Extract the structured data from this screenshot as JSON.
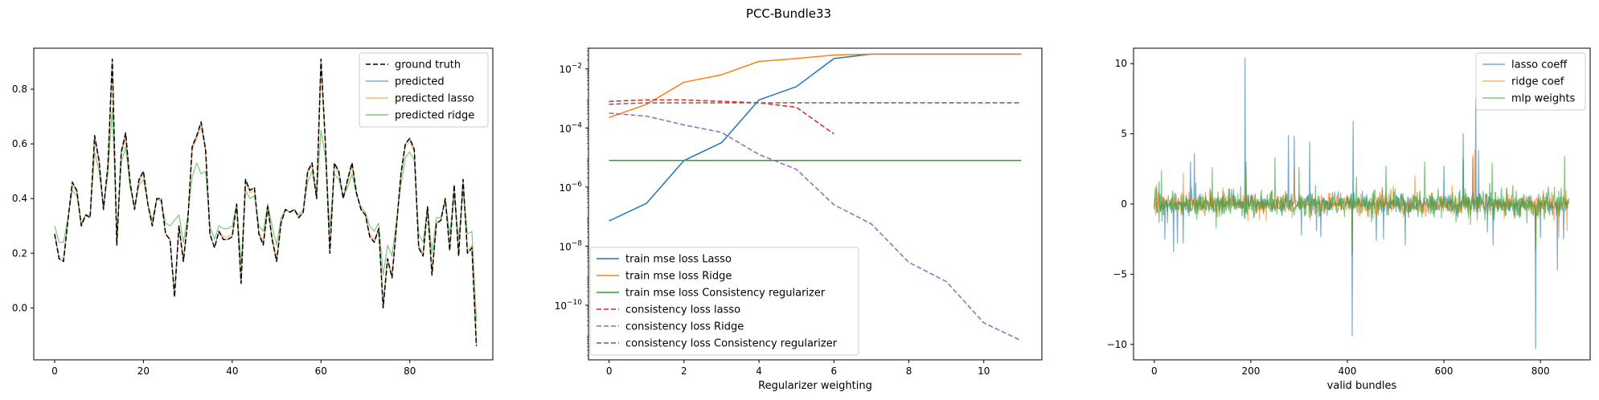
{
  "figure": {
    "suptitle": "PCC-Bundle33"
  },
  "chart_data": [
    {
      "type": "line",
      "title": "",
      "xlabel": "",
      "ylabel": "",
      "xlim": [
        -4.7,
        98.7
      ],
      "ylim": [
        -0.19,
        0.95
      ],
      "xticks": [
        0,
        20,
        40,
        60,
        80
      ],
      "yticks": [
        0.0,
        0.2,
        0.4,
        0.6,
        0.8
      ],
      "ytick_labels": [
        "0.0",
        "0.2",
        "0.4",
        "0.6",
        "0.8"
      ],
      "legend_position": "top-right",
      "series": [
        {
          "name": "ground truth",
          "color": "#000000",
          "dash": "6,3",
          "width": 1.5,
          "opacity": 1.0,
          "values": [
            0.27,
            0.18,
            0.17,
            0.32,
            0.46,
            0.43,
            0.3,
            0.34,
            0.33,
            0.63,
            0.54,
            0.36,
            0.52,
            0.91,
            0.23,
            0.57,
            0.64,
            0.46,
            0.36,
            0.47,
            0.5,
            0.38,
            0.3,
            0.4,
            0.4,
            0.27,
            0.25,
            0.04,
            0.3,
            0.17,
            0.32,
            0.59,
            0.63,
            0.68,
            0.58,
            0.27,
            0.22,
            0.28,
            0.25,
            0.25,
            0.26,
            0.38,
            0.09,
            0.47,
            0.43,
            0.44,
            0.27,
            0.23,
            0.37,
            0.25,
            0.17,
            0.31,
            0.36,
            0.35,
            0.36,
            0.33,
            0.35,
            0.5,
            0.53,
            0.4,
            0.91,
            0.6,
            0.2,
            0.53,
            0.5,
            0.4,
            0.47,
            0.53,
            0.42,
            0.36,
            0.34,
            0.26,
            0.24,
            0.29,
            0.0,
            0.18,
            0.11,
            0.3,
            0.49,
            0.6,
            0.62,
            0.58,
            0.22,
            0.19,
            0.37,
            0.12,
            0.31,
            0.32,
            0.4,
            0.21,
            0.45,
            0.19,
            0.47,
            0.2,
            0.22,
            -0.14
          ]
        },
        {
          "name": "predicted",
          "color": "#1f77b4",
          "dash": "",
          "width": 1.2,
          "opacity": 0.6,
          "values": [
            0.27,
            0.18,
            0.17,
            0.32,
            0.46,
            0.43,
            0.3,
            0.34,
            0.33,
            0.63,
            0.54,
            0.36,
            0.52,
            0.91,
            0.23,
            0.57,
            0.64,
            0.46,
            0.36,
            0.47,
            0.5,
            0.38,
            0.3,
            0.4,
            0.4,
            0.27,
            0.25,
            0.04,
            0.3,
            0.17,
            0.32,
            0.59,
            0.63,
            0.68,
            0.58,
            0.27,
            0.22,
            0.28,
            0.25,
            0.25,
            0.26,
            0.38,
            0.09,
            0.47,
            0.43,
            0.44,
            0.27,
            0.23,
            0.37,
            0.25,
            0.17,
            0.31,
            0.36,
            0.35,
            0.36,
            0.33,
            0.35,
            0.5,
            0.53,
            0.4,
            0.91,
            0.6,
            0.2,
            0.53,
            0.5,
            0.4,
            0.47,
            0.53,
            0.42,
            0.36,
            0.34,
            0.26,
            0.24,
            0.29,
            0.0,
            0.18,
            0.11,
            0.3,
            0.49,
            0.6,
            0.62,
            0.58,
            0.22,
            0.19,
            0.37,
            0.12,
            0.31,
            0.32,
            0.4,
            0.21,
            0.45,
            0.19,
            0.47,
            0.2,
            0.22,
            -0.14
          ]
        },
        {
          "name": "predicted lasso",
          "color": "#ff7f0e",
          "dash": "",
          "width": 1.2,
          "opacity": 0.6,
          "values": [
            0.27,
            0.19,
            0.18,
            0.32,
            0.45,
            0.42,
            0.3,
            0.34,
            0.33,
            0.61,
            0.53,
            0.36,
            0.51,
            0.88,
            0.24,
            0.56,
            0.62,
            0.45,
            0.36,
            0.46,
            0.49,
            0.38,
            0.3,
            0.4,
            0.39,
            0.27,
            0.25,
            0.06,
            0.3,
            0.18,
            0.32,
            0.58,
            0.62,
            0.66,
            0.57,
            0.27,
            0.22,
            0.28,
            0.26,
            0.26,
            0.27,
            0.38,
            0.1,
            0.46,
            0.42,
            0.43,
            0.28,
            0.24,
            0.38,
            0.26,
            0.18,
            0.31,
            0.36,
            0.35,
            0.36,
            0.33,
            0.35,
            0.49,
            0.52,
            0.4,
            0.88,
            0.59,
            0.21,
            0.52,
            0.49,
            0.4,
            0.46,
            0.52,
            0.42,
            0.36,
            0.34,
            0.27,
            0.25,
            0.29,
            0.02,
            0.18,
            0.12,
            0.3,
            0.48,
            0.59,
            0.61,
            0.57,
            0.23,
            0.2,
            0.37,
            0.13,
            0.31,
            0.32,
            0.4,
            0.22,
            0.44,
            0.2,
            0.46,
            0.21,
            0.23,
            -0.12
          ]
        },
        {
          "name": "predicted ridge",
          "color": "#2ca02c",
          "dash": "",
          "width": 1.2,
          "opacity": 0.6,
          "values": [
            0.3,
            0.24,
            0.24,
            0.33,
            0.43,
            0.41,
            0.31,
            0.34,
            0.34,
            0.57,
            0.5,
            0.37,
            0.49,
            0.73,
            0.27,
            0.53,
            0.59,
            0.44,
            0.37,
            0.45,
            0.47,
            0.38,
            0.32,
            0.4,
            0.39,
            0.31,
            0.3,
            0.32,
            0.34,
            0.24,
            0.34,
            0.48,
            0.53,
            0.49,
            0.5,
            0.3,
            0.25,
            0.3,
            0.29,
            0.29,
            0.3,
            0.38,
            0.16,
            0.43,
            0.4,
            0.41,
            0.3,
            0.28,
            0.38,
            0.3,
            0.23,
            0.33,
            0.36,
            0.35,
            0.36,
            0.34,
            0.36,
            0.46,
            0.5,
            0.41,
            0.65,
            0.55,
            0.29,
            0.49,
            0.47,
            0.41,
            0.44,
            0.49,
            0.41,
            0.37,
            0.35,
            0.3,
            0.28,
            0.31,
            0.12,
            0.23,
            0.19,
            0.32,
            0.45,
            0.55,
            0.57,
            0.54,
            0.27,
            0.24,
            0.37,
            0.2,
            0.33,
            0.33,
            0.39,
            0.27,
            0.41,
            0.25,
            0.43,
            0.27,
            0.28,
            -0.05
          ]
        }
      ]
    },
    {
      "type": "line",
      "title": "",
      "xlabel": "Regularizer weighting",
      "ylabel": "",
      "yscale": "log",
      "xlim": [
        -0.55,
        11.55
      ],
      "ylim_log10": [
        -11.85,
        -1.3
      ],
      "xticks": [
        0,
        2,
        4,
        6,
        8,
        10
      ],
      "yticks_log10": [
        -10,
        -8,
        -6,
        -4,
        -2
      ],
      "ytick_labels": [
        "10",
        "10",
        "10",
        "10",
        "10"
      ],
      "ytick_exponents": [
        "−10",
        "−8",
        "−6",
        "−4",
        "−2"
      ],
      "legend_position": "bottom-left",
      "series": [
        {
          "name": "train mse loss Lasso",
          "color": "#1f77b4",
          "dash": "",
          "width": 1.5,
          "x": [
            0,
            1,
            2,
            3,
            4,
            5,
            6,
            7,
            8,
            9,
            10,
            11
          ],
          "log10_values": [
            -7.15,
            -6.55,
            -5.1,
            -4.5,
            -3.05,
            -2.6,
            -1.65,
            -1.5,
            -1.5,
            -1.5,
            -1.5,
            -1.5
          ]
        },
        {
          "name": "train mse loss Ridge",
          "color": "#ff7f0e",
          "dash": "",
          "width": 1.5,
          "x": [
            0,
            1,
            2,
            3,
            4,
            5,
            6,
            7,
            8,
            9,
            10,
            11
          ],
          "log10_values": [
            -3.65,
            -3.2,
            -2.45,
            -2.2,
            -1.75,
            -1.65,
            -1.53,
            -1.5,
            -1.5,
            -1.5,
            -1.5,
            -1.5
          ]
        },
        {
          "name": "train mse loss Consistency regularizer",
          "color": "#2ca02c",
          "dash": "",
          "width": 1.5,
          "x": [
            0,
            11
          ],
          "log10_values": [
            -5.1,
            -5.1
          ]
        },
        {
          "name": "consistency loss lasso",
          "color": "#d62728",
          "dash": "6,3",
          "width": 1.5,
          "x": [
            0,
            1,
            2,
            3,
            4,
            5,
            6
          ],
          "log10_values": [
            -3.1,
            -3.05,
            -3.05,
            -3.1,
            -3.15,
            -3.3,
            -4.2
          ]
        },
        {
          "name": "consistency loss Ridge",
          "color": "#9467bd",
          "dash": "6,3",
          "width": 1.5,
          "x": [
            0,
            1,
            2,
            3,
            4,
            5,
            6,
            7,
            8,
            9,
            10,
            11
          ],
          "log10_values": [
            -3.5,
            -3.6,
            -3.9,
            -4.15,
            -4.9,
            -5.4,
            -6.6,
            -7.25,
            -8.55,
            -9.2,
            -10.6,
            -11.2
          ]
        },
        {
          "name": "consistency loss Consistency regularizer",
          "color": "#8c564b",
          "dash": "6,3",
          "width": 1.5,
          "x": [
            0,
            1,
            2,
            3,
            4,
            5,
            6,
            7,
            8,
            9,
            10,
            11
          ],
          "log10_values": [
            -3.2,
            -3.15,
            -3.15,
            -3.15,
            -3.15,
            -3.15,
            -3.15,
            -3.15,
            -3.15,
            -3.15,
            -3.15,
            -3.15
          ]
        }
      ]
    },
    {
      "type": "line",
      "title": "",
      "xlabel": "valid bundles",
      "ylabel": "",
      "xlim": [
        -43,
        903
      ],
      "ylim": [
        -11.1,
        11.1
      ],
      "xticks": [
        0,
        200,
        400,
        600,
        800
      ],
      "yticks": [
        -10,
        -5,
        0,
        5,
        10
      ],
      "ytick_labels": [
        "−10",
        "−5",
        "0",
        "5",
        "10"
      ],
      "legend_position": "top-right",
      "n_points": 860,
      "series": [
        {
          "name": "lasso coeff",
          "color": "#1f77b4",
          "width": 1.2,
          "opacity": 0.6,
          "base_amplitude": 0.9,
          "spikes": [
            [
              10,
              1.6
            ],
            [
              22,
              -2.5
            ],
            [
              40,
              -3.4
            ],
            [
              48,
              -2.8
            ],
            [
              60,
              -2.8
            ],
            [
              75,
              3.0
            ],
            [
              83,
              3.6
            ],
            [
              188,
              10.4
            ],
            [
              278,
              4.9
            ],
            [
              290,
              4.8
            ],
            [
              305,
              -2.2
            ],
            [
              322,
              4.4
            ],
            [
              336,
              -1.9
            ],
            [
              345,
              -2.3
            ],
            [
              410,
              -9.4
            ],
            [
              412,
              5.9
            ],
            [
              460,
              -2.6
            ],
            [
              475,
              -2.5
            ],
            [
              520,
              -2.9
            ],
            [
              600,
              2.7
            ],
            [
              640,
              5.0
            ],
            [
              660,
              3.3
            ],
            [
              666,
              7.5
            ],
            [
              672,
              3.8
            ],
            [
              690,
              -2.0
            ],
            [
              702,
              -2.9
            ],
            [
              790,
              -10.3
            ],
            [
              800,
              -2.4
            ],
            [
              835,
              -4.7
            ],
            [
              848,
              -2.5
            ]
          ]
        },
        {
          "name": "ridge coef",
          "color": "#ff7f0e",
          "width": 1.2,
          "opacity": 0.6,
          "base_amplitude": 1.1,
          "spikes": [
            [
              5,
              1.4
            ],
            [
              60,
              2.2
            ],
            [
              190,
              2.5
            ],
            [
              290,
              2.4
            ],
            [
              410,
              -2.8
            ],
            [
              540,
              2.0
            ],
            [
              660,
              3.5
            ],
            [
              664,
              3.8
            ],
            [
              790,
              -2.9
            ],
            [
              838,
              -2.4
            ],
            [
              855,
              -1.9
            ]
          ]
        },
        {
          "name": "mlp weights",
          "color": "#2ca02c",
          "width": 1.2,
          "opacity": 0.6,
          "base_amplitude": 1.4,
          "spikes": [
            [
              15,
              2.4
            ],
            [
              120,
              2.6
            ],
            [
              190,
              3.0
            ],
            [
              250,
              3.3
            ],
            [
              300,
              2.6
            ],
            [
              410,
              -3.5
            ],
            [
              480,
              2.7
            ],
            [
              560,
              3.0
            ],
            [
              640,
              3.2
            ],
            [
              700,
              2.9
            ],
            [
              790,
              -3.3
            ],
            [
              850,
              3.4
            ]
          ]
        }
      ]
    }
  ]
}
